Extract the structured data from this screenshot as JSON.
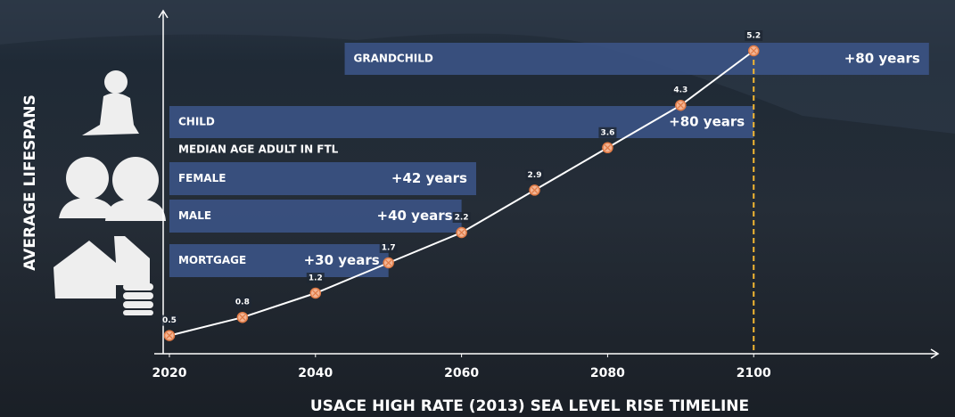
{
  "chart_data": {
    "type": "line",
    "title": "USACE HIGH RATE (2013) SEA LEVEL RISE TIMELINE",
    "y_label": "AVERAGE LIFESPANS",
    "annotation": "MEDIAN AGE ADULT IN FTL",
    "x": [
      2020,
      2030,
      2040,
      2050,
      2060,
      2070,
      2080,
      2090,
      2100
    ],
    "values": [
      0.5,
      0.8,
      1.2,
      1.7,
      2.2,
      2.9,
      3.6,
      4.3,
      5.2
    ],
    "line_color": "#ffffff",
    "marker_color": "#f3b493",
    "xlim": [
      2018,
      2125
    ],
    "xticks": [
      2020,
      2040,
      2060,
      2080,
      2100
    ],
    "ylim": [
      0.2,
      5.9
    ],
    "bars": {
      "color": "#3b5283",
      "labels": [
        "GRANDCHILD",
        "CHILD",
        "FEMALE",
        "MALE",
        "MORTGAGE"
      ],
      "start": [
        2044,
        2020,
        2020,
        2020,
        2020
      ],
      "values": [
        80,
        80,
        42,
        40,
        30
      ],
      "value_labels": [
        "+80 years",
        "+80 years",
        "+42 years",
        "+40 years",
        "+30 years"
      ]
    },
    "guide_color": "#f2b632"
  }
}
